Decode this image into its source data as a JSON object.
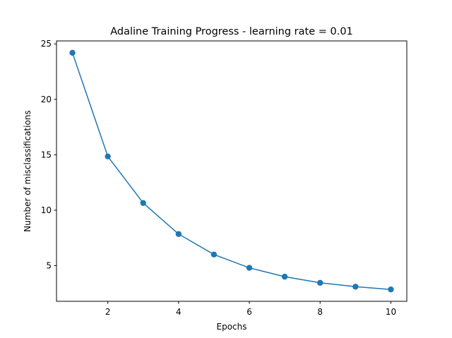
{
  "chart_data": {
    "type": "line",
    "title": "Adaline Training Progress - learning rate = 0.01",
    "xlabel": "Epochs",
    "ylabel": "Number of misclassifications",
    "x": [
      1,
      2,
      3,
      4,
      5,
      6,
      7,
      8,
      9,
      10
    ],
    "series": [
      {
        "values": [
          24.2,
          14.85,
          10.65,
          7.85,
          6.0,
          4.8,
          4.0,
          3.45,
          3.1,
          2.85
        ],
        "color": "#1f77b4",
        "marker": "circle"
      }
    ],
    "xlim": [
      0.55,
      10.45
    ],
    "ylim": [
      1.78,
      25.27
    ],
    "xticks": [
      2,
      4,
      6,
      8,
      10
    ],
    "yticks": [
      5,
      10,
      15,
      20,
      25
    ],
    "grid": false,
    "legend": "none"
  }
}
